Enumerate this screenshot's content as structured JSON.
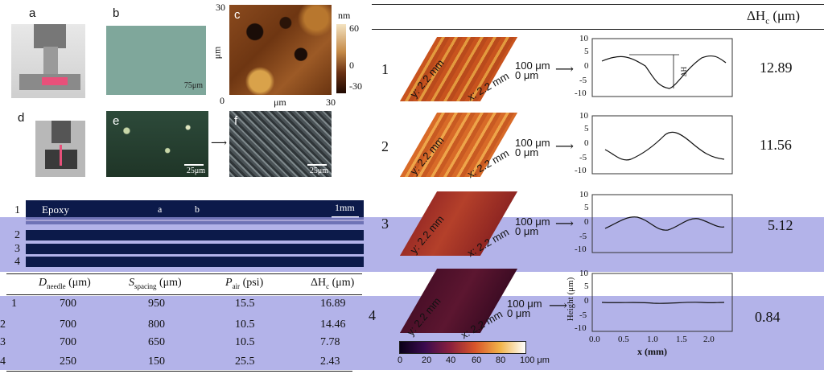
{
  "panel_labels": {
    "a": "a",
    "b": "b",
    "c": "c",
    "d": "d",
    "e": "e",
    "f": "f"
  },
  "scale_bars": {
    "b": "75μm",
    "e": "25μm",
    "f": "25μm",
    "strip": "1mm"
  },
  "afm": {
    "y_top": "30",
    "y_bottom": "0",
    "x_right": "30",
    "y_axis": "μm",
    "x_axis": "μm",
    "colorbar_unit": "nm",
    "colorbar_ticks": [
      "60",
      "0",
      "-30"
    ]
  },
  "strips": {
    "labels": [
      "1",
      "2",
      "3",
      "4"
    ],
    "epoxy": "Epoxy",
    "marker_a": "a",
    "marker_b": "b"
  },
  "table": {
    "headers": [
      "D",
      "needle",
      " (μm)",
      "S",
      "spacing",
      " (μm)",
      "P",
      "air",
      " (psi)",
      "ΔH",
      "c",
      " (μm)"
    ],
    "rows": [
      [
        "1",
        "700",
        "950",
        "15.5",
        "16.89"
      ],
      [
        "2",
        "700",
        "800",
        "10.5",
        "14.46"
      ],
      [
        "3",
        "700",
        "650",
        "10.5",
        "7.78"
      ],
      [
        "4",
        "250",
        "150",
        "25.5",
        "2.43"
      ]
    ]
  },
  "right": {
    "header_main": "ΔH",
    "header_sub": "c",
    "header_unit": " (μm)",
    "rows": [
      {
        "num": "1",
        "value": "12.89"
      },
      {
        "num": "2",
        "value": "11.56"
      },
      {
        "num": "3",
        "value": "5.12"
      },
      {
        "num": "4",
        "value": "0.84"
      }
    ],
    "surface_labels": {
      "z_top": "100 μm",
      "z_bot": "0 μm",
      "y": "y: 2.2 mm",
      "x": "x: 2.2 mm"
    },
    "profile_y_ticks": [
      "10",
      "5",
      "0",
      "-5",
      "-10"
    ],
    "profile_x_ticks": [
      "0.0",
      "0.5",
      "1.0",
      "1.5",
      "2.0"
    ],
    "profile_xlabel": "x (mm)",
    "profile_ylabel": "Height (μm)",
    "annotation": "ΔH",
    "colorbar_ticks": [
      "0",
      "20",
      "40",
      "60",
      "80",
      "100 μm"
    ]
  }
}
